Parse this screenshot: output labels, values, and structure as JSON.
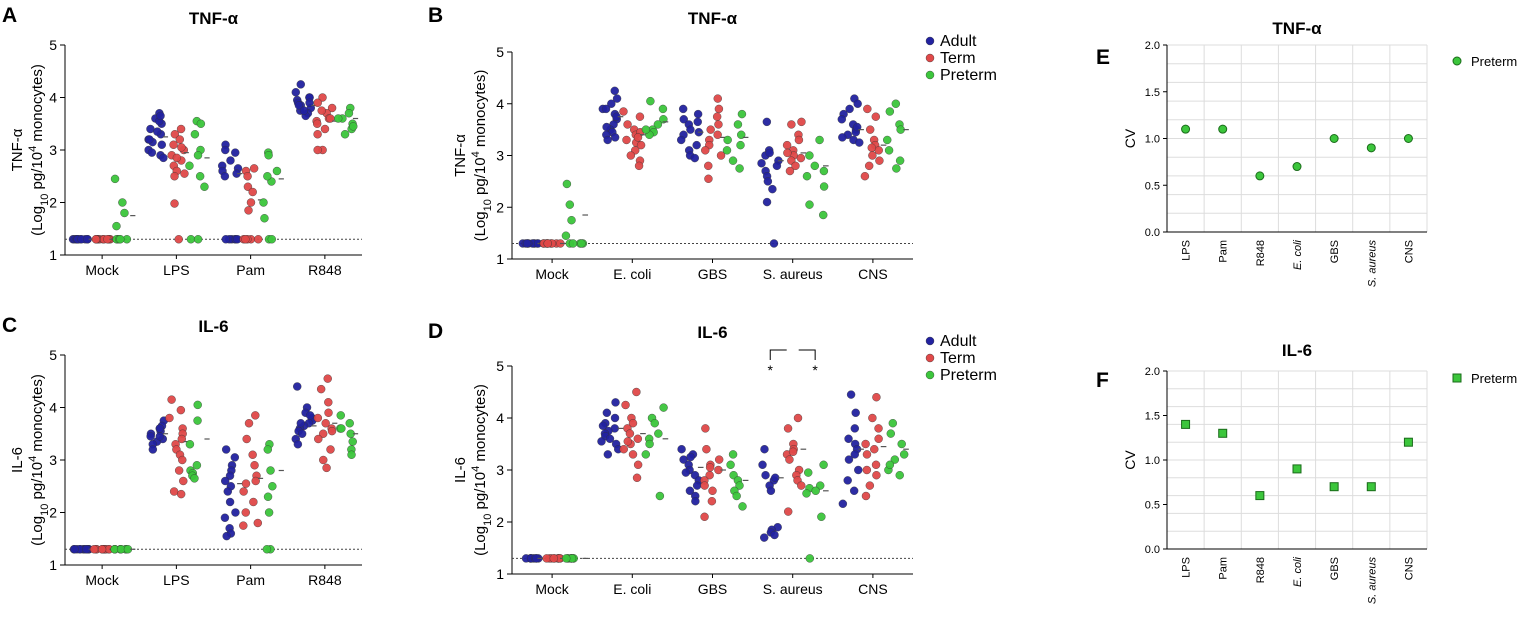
{
  "colors": {
    "adult": "#2222a0",
    "term": "#e04848",
    "preterm": "#3cc63c",
    "grid": "#dddddd",
    "axis": "#000000"
  },
  "chart_data": [
    {
      "id": "A",
      "letter": "A",
      "type": "scatter",
      "title": "TNF-α",
      "ylabel_main": "TNF-α",
      "ylabel_unit": "(Log10 pg/104 monocytes)",
      "ylim": [
        1,
        5
      ],
      "yticks": [
        "1",
        "2",
        "3",
        "4",
        "5"
      ],
      "categories": [
        "Mock",
        "LPS",
        "Pam",
        "R848"
      ],
      "detection_limit": 1.3,
      "series": [
        {
          "name": "Adult",
          "values": [
            [
              1.3,
              1.3,
              1.3,
              1.3,
              1.3,
              1.3,
              1.3,
              1.3,
              1.3,
              1.3,
              1.3,
              1.3
            ],
            [
              3.7,
              3.6,
              3.5,
              3.4,
              3.3,
              3.2,
              3.15,
              3.1,
              3.0,
              2.95,
              2.9,
              2.85,
              3.2,
              3.35,
              3.55,
              3.65
            ],
            [
              3.1,
              2.95,
              2.8,
              2.7,
              2.65,
              2.6,
              2.55,
              2.5,
              1.3,
              1.3,
              1.3,
              1.3,
              1.3,
              1.3,
              3.0
            ],
            [
              4.25,
              4.1,
              4.0,
              3.95,
              3.9,
              3.85,
              3.8,
              3.75,
              3.7,
              3.65,
              3.85,
              4.0,
              3.9,
              3.75
            ]
          ],
          "means": [
            1.3,
            3.25,
            2.55,
            3.85
          ]
        },
        {
          "name": "Term",
          "values": [
            [
              1.3,
              1.3,
              1.3,
              1.3,
              1.3,
              1.3,
              1.3,
              1.3,
              1.3,
              1.3,
              1.3,
              1.3
            ],
            [
              3.4,
              3.3,
              3.2,
              3.1,
              3.0,
              2.9,
              2.8,
              2.7,
              2.6,
              2.55,
              2.5,
              1.98,
              1.3,
              3.05,
              2.85
            ],
            [
              2.65,
              2.6,
              2.5,
              2.3,
              2.2,
              2.0,
              1.85,
              1.3,
              1.3,
              1.3,
              1.3,
              1.3
            ],
            [
              4.0,
              3.9,
              3.8,
              3.7,
              3.6,
              3.55,
              3.5,
              3.4,
              3.3,
              3.0,
              3.0,
              3.6,
              3.75
            ]
          ],
          "means": [
            1.3,
            2.95,
            2.05,
            3.55
          ]
        },
        {
          "name": "Preterm",
          "values": [
            [
              2.45,
              2.0,
              1.8,
              1.55,
              1.3,
              1.3,
              1.3,
              1.3,
              1.3
            ],
            [
              3.55,
              3.5,
              3.3,
              3.0,
              2.7,
              2.5,
              2.3,
              1.3,
              1.3,
              2.9
            ],
            [
              2.95,
              2.9,
              2.6,
              2.4,
              2.0,
              1.7,
              1.3,
              1.3,
              2.5
            ],
            [
              3.8,
              3.7,
              3.6,
              3.5,
              3.4,
              3.3,
              3.6,
              3.45
            ]
          ],
          "means": [
            1.75,
            2.85,
            2.45,
            3.6
          ]
        }
      ]
    },
    {
      "id": "B",
      "letter": "B",
      "type": "scatter",
      "title": "TNF-α",
      "ylabel_main": "TNF-α",
      "ylabel_unit": "(Log10 pg/104 monocytes)",
      "ylim": [
        1,
        5
      ],
      "yticks": [
        "1",
        "2",
        "3",
        "4",
        "5"
      ],
      "categories": [
        "Mock",
        "E. coli",
        "GBS",
        "S. aureus",
        "CNS"
      ],
      "detection_limit": 1.3,
      "series": [
        {
          "name": "Adult",
          "values": [
            [
              1.3,
              1.3,
              1.3,
              1.3,
              1.3,
              1.3,
              1.3,
              1.3,
              1.3,
              1.3
            ],
            [
              4.25,
              4.1,
              4.0,
              3.9,
              3.8,
              3.7,
              3.6,
              3.5,
              3.45,
              3.4,
              3.35,
              3.3,
              3.55,
              3.75,
              3.9
            ],
            [
              3.9,
              3.8,
              3.7,
              3.6,
              3.5,
              3.4,
              3.3,
              3.2,
              3.1,
              3.0,
              2.95,
              3.45,
              3.65
            ],
            [
              3.65,
              3.1,
              3.0,
              2.9,
              2.8,
              2.7,
              2.6,
              2.5,
              2.35,
              2.1,
              1.3,
              2.85,
              3.05
            ],
            [
              4.1,
              4.0,
              3.9,
              3.8,
              3.6,
              3.5,
              3.4,
              3.35,
              3.3,
              3.25,
              3.45,
              3.55,
              3.7
            ]
          ],
          "means": [
            1.3,
            3.75,
            3.45,
            2.9,
            3.5
          ]
        },
        {
          "name": "Term",
          "values": [
            [
              1.3,
              1.3,
              1.3,
              1.3,
              1.3,
              1.3,
              1.3,
              1.3,
              1.3,
              1.3
            ],
            [
              3.85,
              3.75,
              3.6,
              3.5,
              3.4,
              3.3,
              3.25,
              3.2,
              3.1,
              3.0,
              2.9,
              2.8,
              3.45,
              3.35
            ],
            [
              4.1,
              3.9,
              3.75,
              3.6,
              3.5,
              3.4,
              3.3,
              3.2,
              3.1,
              3.0,
              2.8,
              2.55
            ],
            [
              3.65,
              3.6,
              3.4,
              3.3,
              3.2,
              3.1,
              3.0,
              2.95,
              2.9,
              2.8,
              2.7,
              3.05
            ],
            [
              3.9,
              3.75,
              3.5,
              3.3,
              3.2,
              3.1,
              3.0,
              2.9,
              2.8,
              2.6,
              3.15
            ]
          ],
          "means": [
            1.3,
            3.4,
            3.35,
            3.05,
            3.2
          ]
        },
        {
          "name": "Preterm",
          "values": [
            [
              2.45,
              2.05,
              1.75,
              1.45,
              1.3,
              1.3,
              1.3,
              1.3,
              1.3
            ],
            [
              4.05,
              3.9,
              3.7,
              3.6,
              3.5,
              3.45,
              3.4,
              3.5
            ],
            [
              3.8,
              3.6,
              3.4,
              3.3,
              3.1,
              2.9,
              2.75,
              3.2
            ],
            [
              3.3,
              3.0,
              2.8,
              2.7,
              2.6,
              2.4,
              2.05,
              1.85
            ],
            [
              4.0,
              3.85,
              3.6,
              3.5,
              3.3,
              3.1,
              2.9,
              2.75
            ]
          ],
          "means": [
            1.85,
            3.65,
            3.35,
            2.8,
            3.5
          ]
        }
      ]
    },
    {
      "id": "C",
      "letter": "C",
      "type": "scatter",
      "title": "IL-6",
      "ylabel_main": "IL-6",
      "ylabel_unit": "(Log10 pg/104 monocytes)",
      "ylim": [
        1,
        5
      ],
      "yticks": [
        "1",
        "2",
        "3",
        "4",
        "5"
      ],
      "categories": [
        "Mock",
        "LPS",
        "Pam",
        "R848"
      ],
      "detection_limit": 1.3,
      "series": [
        {
          "name": "Adult",
          "values": [
            [
              1.3,
              1.3,
              1.3,
              1.3,
              1.3,
              1.3,
              1.3,
              1.3,
              1.3,
              1.3,
              1.3,
              1.3
            ],
            [
              3.75,
              3.65,
              3.6,
              3.55,
              3.5,
              3.45,
              3.4,
              3.35,
              3.3,
              3.2,
              3.6,
              3.45
            ],
            [
              3.2,
              3.05,
              2.9,
              2.8,
              2.7,
              2.6,
              2.5,
              2.4,
              2.2,
              2.0,
              1.9,
              1.7,
              1.6,
              1.55
            ],
            [
              4.4,
              4.0,
              3.9,
              3.8,
              3.75,
              3.7,
              3.65,
              3.6,
              3.55,
              3.5,
              3.4,
              3.3,
              3.85,
              3.7
            ]
          ],
          "means": [
            1.3,
            3.5,
            2.55,
            3.65
          ]
        },
        {
          "name": "Term",
          "values": [
            [
              1.3,
              1.3,
              1.3,
              1.3,
              1.3,
              1.3,
              1.3,
              1.3,
              1.3,
              1.3,
              1.3,
              1.3
            ],
            [
              4.15,
              3.95,
              3.8,
              3.6,
              3.5,
              3.4,
              3.3,
              3.2,
              3.1,
              3.0,
              2.8,
              2.6,
              2.4,
              2.35
            ],
            [
              3.85,
              3.7,
              3.4,
              3.1,
              2.9,
              2.7,
              2.55,
              2.4,
              2.2,
              2.0,
              1.8,
              1.75,
              2.6
            ],
            [
              4.55,
              4.35,
              4.1,
              3.9,
              3.8,
              3.7,
              3.6,
              3.55,
              3.5,
              3.4,
              3.2,
              3.0,
              2.85
            ]
          ],
          "means": [
            1.3,
            3.35,
            2.65,
            3.7
          ]
        },
        {
          "name": "Preterm",
          "values": [
            [
              1.3,
              1.3,
              1.3,
              1.3,
              1.3,
              1.3,
              1.3,
              1.3,
              1.3
            ],
            [
              4.05,
              3.75,
              3.3,
              2.9,
              2.8,
              2.75,
              2.7,
              2.65
            ],
            [
              3.3,
              3.2,
              2.8,
              2.5,
              2.3,
              2.0,
              1.3,
              1.3
            ],
            [
              3.85,
              3.7,
              3.6,
              3.5,
              3.35,
              3.2,
              3.1,
              3.6
            ]
          ],
          "means": [
            1.3,
            3.4,
            2.8,
            3.5
          ]
        }
      ]
    },
    {
      "id": "D",
      "letter": "D",
      "type": "scatter",
      "title": "IL-6",
      "ylabel_main": "IL-6",
      "ylabel_unit": "(Log10 pg/104 monocytes)",
      "ylim": [
        1,
        5
      ],
      "yticks": [
        "1",
        "2",
        "3",
        "4",
        "5"
      ],
      "categories": [
        "Mock",
        "E. coli",
        "GBS",
        "S. aureus",
        "CNS"
      ],
      "detection_limit": 1.3,
      "significance": [
        "*",
        "*"
      ],
      "series": [
        {
          "name": "Adult",
          "values": [
            [
              1.3,
              1.3,
              1.3,
              1.3,
              1.3,
              1.3,
              1.3,
              1.3,
              1.3,
              1.3
            ],
            [
              4.3,
              4.1,
              4.0,
              3.9,
              3.8,
              3.75,
              3.7,
              3.65,
              3.6,
              3.55,
              3.5,
              3.4,
              3.3,
              3.85
            ],
            [
              3.4,
              3.3,
              3.2,
              3.1,
              3.0,
              2.95,
              2.9,
              2.8,
              2.7,
              2.6,
              2.5,
              2.4,
              3.25
            ],
            [
              3.4,
              3.1,
              2.9,
              2.8,
              2.7,
              2.6,
              1.9,
              1.85,
              1.8,
              1.75,
              1.7,
              2.85
            ],
            [
              4.45,
              4.1,
              3.8,
              3.6,
              3.5,
              3.4,
              3.3,
              3.2,
              3.0,
              2.8,
              2.6,
              2.35
            ]
          ],
          "means": [
            1.3,
            3.8,
            3.05,
            2.85,
            3.4
          ]
        },
        {
          "name": "Term",
          "values": [
            [
              1.3,
              1.3,
              1.3,
              1.3,
              1.3,
              1.3,
              1.3,
              1.3,
              1.3,
              1.3
            ],
            [
              4.5,
              4.25,
              4.0,
              3.9,
              3.8,
              3.7,
              3.6,
              3.5,
              3.4,
              3.3,
              3.1,
              2.85,
              3.55
            ],
            [
              3.8,
              3.4,
              3.2,
              3.1,
              3.0,
              2.9,
              2.8,
              2.7,
              2.6,
              2.4,
              2.1,
              3.05
            ],
            [
              4.0,
              3.8,
              3.5,
              3.4,
              3.3,
              3.2,
              3.0,
              2.9,
              2.8,
              2.7,
              2.2,
              3.35
            ],
            [
              4.4,
              4.0,
              3.8,
              3.6,
              3.4,
              3.3,
              3.1,
              3.0,
              2.9,
              2.7,
              2.5,
              3.5
            ]
          ],
          "means": [
            1.3,
            3.7,
            3.0,
            3.4,
            3.45
          ]
        },
        {
          "name": "Preterm",
          "values": [
            [
              1.3,
              1.3,
              1.3,
              1.3,
              1.3,
              1.3,
              1.3,
              1.3,
              1.3
            ],
            [
              4.2,
              4.0,
              3.9,
              3.7,
              3.6,
              3.5,
              3.3,
              2.5
            ],
            [
              3.3,
              3.1,
              2.9,
              2.8,
              2.7,
              2.6,
              2.5,
              2.3
            ],
            [
              3.1,
              2.95,
              2.7,
              2.65,
              2.6,
              2.55,
              2.1,
              1.3
            ],
            [
              3.9,
              3.7,
              3.5,
              3.3,
              3.2,
              3.0,
              2.9,
              3.1
            ]
          ],
          "means": [
            1.3,
            3.6,
            2.8,
            2.6,
            3.4
          ]
        }
      ]
    },
    {
      "id": "E",
      "letter": "E",
      "type": "scatter",
      "title": "TNF-α",
      "ylabel": "CV",
      "ylim": [
        0,
        2
      ],
      "yticks": [
        "0.0",
        "0.5",
        "1.0",
        "1.5",
        "2.0"
      ],
      "categories": [
        "LPS",
        "Pam",
        "R848",
        "E. coli",
        "GBS",
        "S. aureus",
        "CNS"
      ],
      "italic_categories": [
        "E. coli",
        "S. aureus"
      ],
      "marker": "circle",
      "legend": "Preterm",
      "values": [
        1.1,
        1.1,
        0.6,
        0.7,
        1.0,
        0.9,
        1.0
      ]
    },
    {
      "id": "F",
      "letter": "F",
      "type": "scatter",
      "title": "IL-6",
      "ylabel": "CV",
      "ylim": [
        0,
        2
      ],
      "yticks": [
        "0.0",
        "0.5",
        "1.0",
        "1.5",
        "2.0"
      ],
      "categories": [
        "LPS",
        "Pam",
        "R848",
        "E. coli",
        "GBS",
        "S. aureus",
        "CNS"
      ],
      "italic_categories": [
        "E. coli",
        "S. aureus"
      ],
      "marker": "square",
      "legend": "Preterm",
      "values": [
        1.4,
        1.3,
        0.6,
        0.9,
        0.7,
        0.7,
        1.2
      ]
    }
  ],
  "legends": {
    "B": [
      "Adult",
      "Term",
      "Preterm"
    ],
    "D": [
      "Adult",
      "Term",
      "Preterm"
    ]
  }
}
